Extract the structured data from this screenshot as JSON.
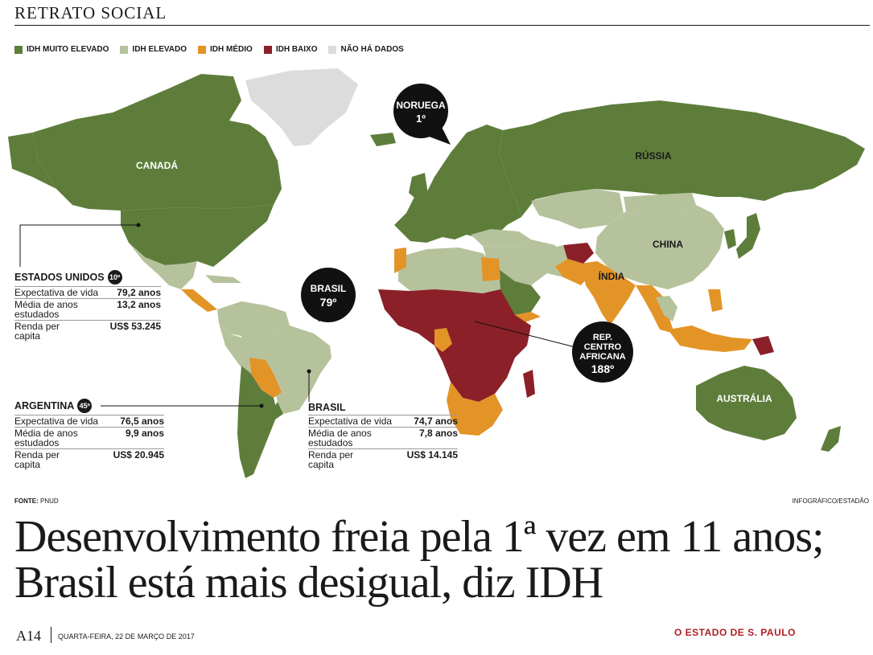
{
  "section_title": "RETRATO SOCIAL",
  "legend": [
    {
      "label": "IDH MUITO ELEVADO",
      "color": "#5e7d3b"
    },
    {
      "label": "IDH ELEVADO",
      "color": "#b6c29c"
    },
    {
      "label": "IDH MÉDIO",
      "color": "#e39426"
    },
    {
      "label": "IDH BAIXO",
      "color": "#8b2028"
    },
    {
      "label": "NÃO HÁ DADOS",
      "color": "#dcdcdc"
    }
  ],
  "map_labels": {
    "canada": "CANADÁ",
    "russia": "RÚSSIA",
    "china": "CHINA",
    "india": "ÍNDIA",
    "australia": "AUSTRÁLIA"
  },
  "callouts": {
    "norway": {
      "name": "NORUEGA",
      "rank": "1º"
    },
    "brazil": {
      "name": "BRASIL",
      "rank": "79º"
    },
    "car": {
      "line1": "REP.",
      "line2": "CENTRO",
      "line3": "AFRICANA",
      "rank": "188º"
    }
  },
  "stat_boxes": {
    "usa": {
      "country": "ESTADOS UNIDOS",
      "rank": "10º",
      "rows": [
        {
          "label": "Expectativa de vida",
          "value": "79,2 anos"
        },
        {
          "label": "Média de anos estudados",
          "value": "13,2 anos"
        },
        {
          "label": "Renda per capita",
          "value": "US$ 53.245"
        }
      ]
    },
    "argentina": {
      "country": "ARGENTINA",
      "rank": "45º",
      "rows": [
        {
          "label": "Expectativa de vida",
          "value": "76,5 anos"
        },
        {
          "label": "Média de anos estudados",
          "value": "9,9 anos"
        },
        {
          "label": "Renda per capita",
          "value": "US$ 20.945"
        }
      ]
    },
    "brazil": {
      "country": "BRASIL",
      "rank": "",
      "rows": [
        {
          "label": "Expectativa de vida",
          "value": "74,7 anos"
        },
        {
          "label": "Média de anos estudados",
          "value": "7,8 anos"
        },
        {
          "label": "Renda per capita",
          "value": "US$ 14.145"
        }
      ]
    }
  },
  "source": {
    "label": "FONTE:",
    "value": "PNUD"
  },
  "credit": "INFOGRÁFICO/ESTADÃO",
  "headline": "Desenvolvimento freia pela 1ª vez em 11 anos; Brasil está mais desigual, diz IDH",
  "footer": {
    "page": "A14",
    "date": "QUARTA-FEIRA, 22 DE MARÇO DE 2017",
    "paper": "O ESTADO DE S. PAULO"
  }
}
